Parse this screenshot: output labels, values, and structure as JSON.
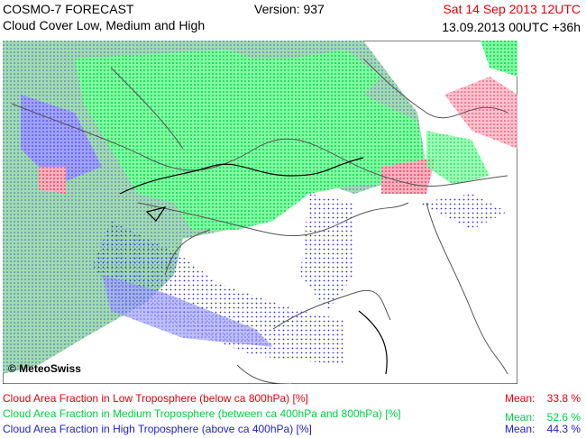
{
  "header": {
    "title": "COSMO-7 FORECAST",
    "subtitle": "Cloud Cover Low, Medium and High",
    "version": "Version: 937",
    "valid_time": "Sat 14 Sep 2013 12UTC",
    "run_time": "13.09.2013 00UTC +36h"
  },
  "map": {
    "copyright": "© MeteoSwiss"
  },
  "legend": [
    {
      "label": "Cloud Area Fraction in Low Troposphere (below ca 800hPa) [%]",
      "mean_label": "Mean:",
      "mean_value": "33.8 %",
      "color": "#e8000b"
    },
    {
      "label": "Cloud Area Fraction in Medium Troposphere (between ca 400hPa and 800hPa) [%]",
      "mean_label": "Mean:",
      "mean_value": "52.6 %",
      "color": "#00d040"
    },
    {
      "label": "Cloud Area Fraction in High Troposphere (above ca 400hPa) [%]",
      "mean_label": "Mean:",
      "mean_value": "44.3 %",
      "color": "#2020e0"
    }
  ]
}
